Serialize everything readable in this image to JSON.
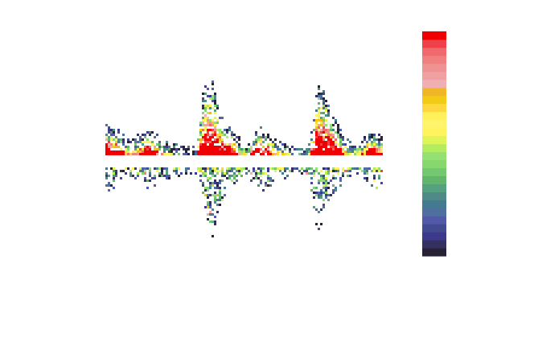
{
  "chart_data": {
    "type": "heatmap",
    "title": "",
    "xlabel": "",
    "ylabel": "",
    "grid": false,
    "legend": "colorbar-right",
    "colorscale": [
      "#262135",
      "#343060",
      "#3d3a8c",
      "#434a90",
      "#5159a8",
      "#4f6fa0",
      "#447a90",
      "#4f8a86",
      "#55a080",
      "#62b56a",
      "#74c870",
      "#86d86e",
      "#94e072",
      "#b4ec60",
      "#dff458",
      "#fff35e",
      "#fff46a",
      "#fff05c",
      "#ffd840",
      "#f2cb17",
      "#f0b626",
      "#f0b0b2",
      "#f0a0a2",
      "#ee9292",
      "#f08080",
      "#f06a6c",
      "#f0404a",
      "#f00000"
    ],
    "upper_envelope": [
      35,
      28,
      20,
      10,
      20,
      25,
      20,
      12,
      8,
      5,
      4,
      5,
      80,
      88,
      45,
      30,
      20,
      8,
      20,
      28,
      22,
      12,
      10,
      5,
      3,
      8,
      85,
      70,
      40,
      20,
      10,
      10,
      20,
      25,
      15
    ],
    "lower_envelope": [
      30,
      22,
      10,
      8,
      15,
      22,
      18,
      12,
      8,
      5,
      3,
      5,
      40,
      90,
      40,
      20,
      15,
      10,
      12,
      25,
      20,
      10,
      8,
      5,
      3,
      15,
      80,
      45,
      25,
      15,
      8,
      5,
      12,
      22,
      15
    ]
  }
}
